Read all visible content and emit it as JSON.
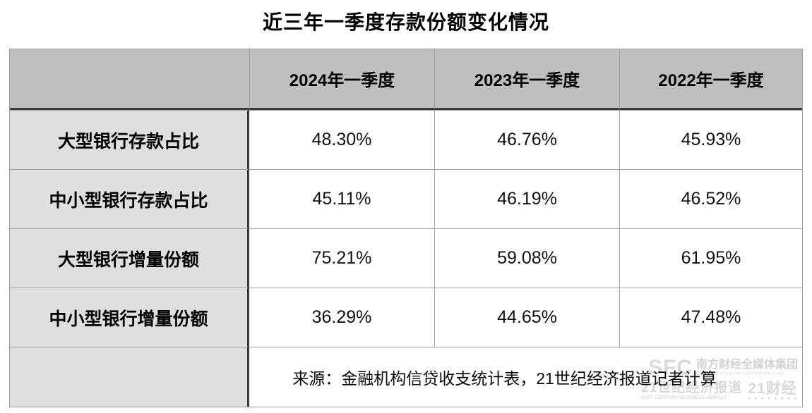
{
  "title": "近三年一季度存款份额变化情况",
  "table": {
    "columns": [
      "2024年一季度",
      "2023年一季度",
      "2022年一季度"
    ],
    "rows": [
      {
        "label": "大型银行存款占比",
        "values": [
          "48.30%",
          "46.76%",
          "45.93%"
        ]
      },
      {
        "label": "中小型银行存款占比",
        "values": [
          "45.11%",
          "46.19%",
          "46.52%"
        ]
      },
      {
        "label": "大型银行增量份额",
        "values": [
          "75.21%",
          "59.08%",
          "61.95%"
        ]
      },
      {
        "label": "中小型银行增量份额",
        "values": [
          "36.29%",
          "44.65%",
          "47.48%"
        ]
      }
    ],
    "source": "来源：金融机构信贷收支统计表，21世纪经济报道记者计算"
  },
  "watermark": {
    "sfc_logo": "SFC",
    "corp_cn": "南方财经全媒体集团",
    "corp_en": "Southern Finance Omnimedia Corp.",
    "herald_cn": "21世纪经济报道",
    "herald_en": "21ST CENTURY BUSINESS HERALD",
    "finance_cn": "21财经",
    "badge_squares": "■ ■ ■ ■ ■ ■ ■ ■"
  },
  "colors": {
    "header_bg": "#bfbfbf",
    "label_bg": "#dfdfdf",
    "border_dark": "#3c3c3c",
    "border_light": "#a0a0a0",
    "outer_border": "#9b9b9b",
    "watermark": "#d5d5d5",
    "text": "#111111"
  },
  "chart_data": {
    "type": "table",
    "title": "近三年一季度存款份额变化情况",
    "columns": [
      "",
      "2024年一季度",
      "2023年一季度",
      "2022年一季度"
    ],
    "rows": [
      [
        "大型银行存款占比",
        "48.30%",
        "46.76%",
        "45.93%"
      ],
      [
        "中小型银行存款占比",
        "45.11%",
        "46.19%",
        "46.52%"
      ],
      [
        "大型银行增量份额",
        "75.21%",
        "59.08%",
        "61.95%"
      ],
      [
        "中小型银行增量份额",
        "36.29%",
        "44.65%",
        "47.48%"
      ]
    ],
    "values_numeric_percent": {
      "大型银行存款占比": [
        48.3,
        46.76,
        45.93
      ],
      "中小型银行存款占比": [
        45.11,
        46.19,
        46.52
      ],
      "大型银行增量份额": [
        75.21,
        59.08,
        61.95
      ],
      "中小型银行增量份额": [
        36.29,
        44.65,
        47.48
      ]
    },
    "source": "来源：金融机构信贷收支统计表，21世纪经济报道记者计算",
    "legend_position": "none",
    "grid": true
  }
}
